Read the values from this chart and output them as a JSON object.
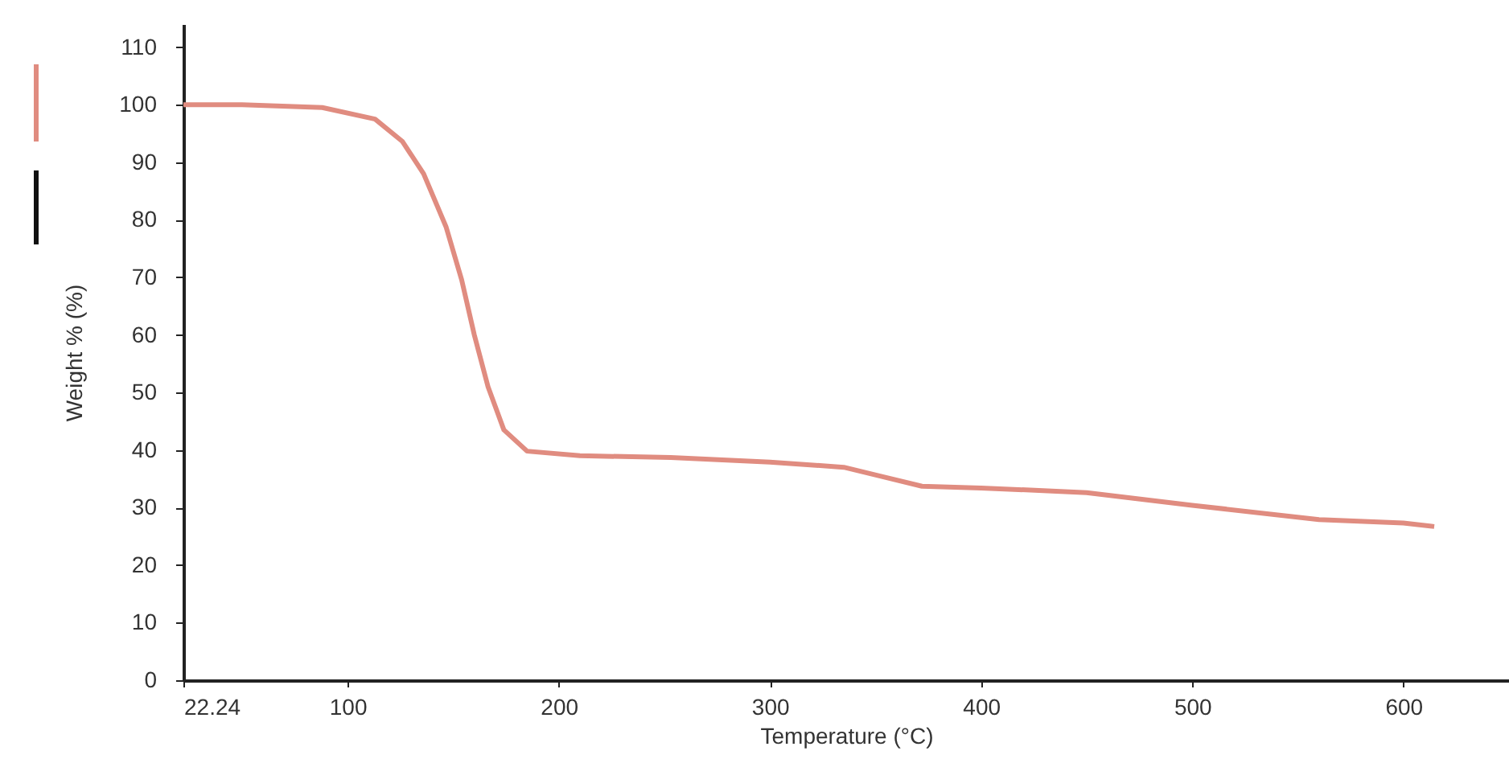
{
  "chart_data": {
    "type": "line",
    "xlabel": "Temperature (°C)",
    "ylabel": "Weight % (%)",
    "xlim": [
      22.24,
      650
    ],
    "xticks": [
      22.24,
      100,
      200,
      300,
      400,
      500,
      600
    ],
    "ylim": [
      0,
      114
    ],
    "yticks": [
      0,
      10,
      20,
      30,
      40,
      50,
      60,
      70,
      80,
      90,
      100,
      110
    ],
    "grid": false,
    "line_style": "solid",
    "series": [
      {
        "color": "#e08c80",
        "x": [
          22.24,
          50,
          88,
          113,
          126,
          136,
          146.6,
          154,
          160,
          166.5,
          174,
          185,
          210,
          253,
          300,
          335,
          353,
          372,
          400,
          450,
          500,
          560,
          600,
          614.6
        ],
        "values": [
          100,
          100,
          99.5,
          97.5,
          93.6,
          88,
          78.8,
          69.6,
          60,
          51,
          43.5,
          39.8,
          39,
          38.7,
          37.9,
          37,
          35.4,
          33.7,
          33.4,
          32.6,
          30.4,
          27.9,
          27.3,
          26.7
        ]
      }
    ]
  }
}
